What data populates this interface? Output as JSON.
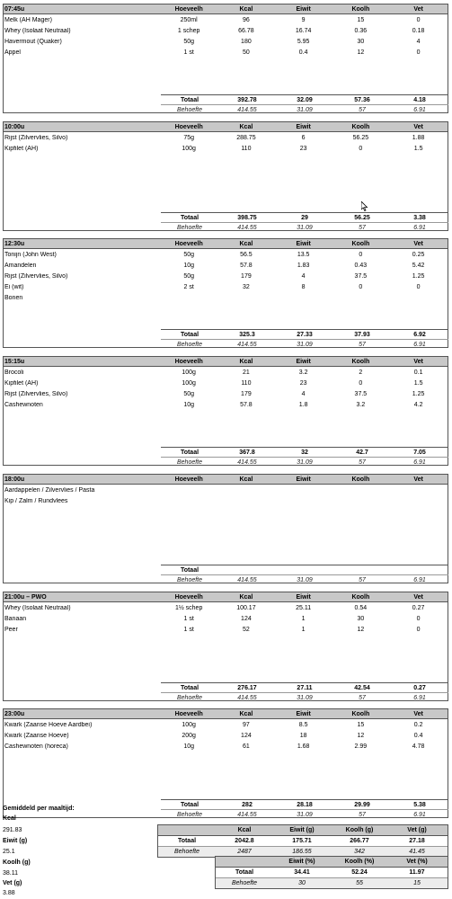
{
  "columns": {
    "qty": "Hoeveelh",
    "kcal": "Kcal",
    "eiwit": "Eiwit",
    "koolh": "Koolh",
    "vet": "Vet"
  },
  "total_label": "Totaal",
  "need_label": "Behoefte",
  "need": {
    "kcal": "414.55",
    "eiwit": "31.09",
    "koolh": "57",
    "vet": "6.91"
  },
  "meals": [
    {
      "time": "07:45u",
      "items": [
        {
          "name": "Melk (AH Mager)",
          "qty": "250ml",
          "kcal": "96",
          "eiwit": "9",
          "koolh": "15",
          "vet": "0"
        },
        {
          "name": "Whey (Isolaat Neutraal)",
          "qty": "1 schep",
          "kcal": "66.78",
          "eiwit": "16.74",
          "koolh": "0.36",
          "vet": "0.18"
        },
        {
          "name": "Havermout (Quaker)",
          "qty": "50g",
          "kcal": "180",
          "eiwit": "5.95",
          "koolh": "30",
          "vet": "4"
        },
        {
          "name": "Appel",
          "qty": "1 st",
          "kcal": "50",
          "eiwit": "0.4",
          "koolh": "12",
          "vet": "0"
        }
      ],
      "total": {
        "kcal": "392.78",
        "eiwit": "32.09",
        "koolh": "57.36",
        "vet": "4.18"
      }
    },
    {
      "time": "10:00u",
      "items": [
        {
          "name": "Rijst (Zilvervlies, Silvo)",
          "qty": "75g",
          "kcal": "288.75",
          "eiwit": "6",
          "koolh": "56.25",
          "vet": "1.88"
        },
        {
          "name": "Kipfilet (AH)",
          "qty": "100g",
          "kcal": "110",
          "eiwit": "23",
          "koolh": "0",
          "vet": "1.5"
        }
      ],
      "total": {
        "kcal": "398.75",
        "eiwit": "29",
        "koolh": "56.25",
        "vet": "3.38"
      }
    },
    {
      "time": "12:30u",
      "items": [
        {
          "name": "Tonijn (John West)",
          "qty": "50g",
          "kcal": "56.5",
          "eiwit": "13.5",
          "koolh": "0",
          "vet": "0.25"
        },
        {
          "name": "Amandelen",
          "qty": "10g",
          "kcal": "57.8",
          "eiwit": "1.83",
          "koolh": "0.43",
          "vet": "5.42"
        },
        {
          "name": "Rijst (Zilvervlies, Silvo)",
          "qty": "50g",
          "kcal": "179",
          "eiwit": "4",
          "koolh": "37.5",
          "vet": "1.25"
        },
        {
          "name": "Ei (wit)",
          "qty": "2 st",
          "kcal": "32",
          "eiwit": "8",
          "koolh": "0",
          "vet": "0"
        },
        {
          "name": "Bonen",
          "qty": "",
          "kcal": "",
          "eiwit": "",
          "koolh": "",
          "vet": ""
        }
      ],
      "total": {
        "kcal": "325.3",
        "eiwit": "27.33",
        "koolh": "37.93",
        "vet": "6.92"
      }
    },
    {
      "time": "15:15u",
      "items": [
        {
          "name": "Brocoli",
          "qty": "100g",
          "kcal": "21",
          "eiwit": "3.2",
          "koolh": "2",
          "vet": "0.1"
        },
        {
          "name": "Kipfilet (AH)",
          "qty": "100g",
          "kcal": "110",
          "eiwit": "23",
          "koolh": "0",
          "vet": "1.5"
        },
        {
          "name": "Rijst (Zilvervlies, Silvo)",
          "qty": "50g",
          "kcal": "179",
          "eiwit": "4",
          "koolh": "37.5",
          "vet": "1.25"
        },
        {
          "name": "Cashewnoten",
          "qty": "10g",
          "kcal": "57.8",
          "eiwit": "1.8",
          "koolh": "3.2",
          "vet": "4.2"
        }
      ],
      "total": {
        "kcal": "367.8",
        "eiwit": "32",
        "koolh": "42.7",
        "vet": "7.05"
      }
    },
    {
      "time": "18:00u",
      "items": [
        {
          "name": "Aardappelen / Zilvervlies / Pasta",
          "qty": "",
          "kcal": "",
          "eiwit": "",
          "koolh": "",
          "vet": ""
        },
        {
          "name": "Kip / Zalm / Rundvlees",
          "qty": "",
          "kcal": "",
          "eiwit": "",
          "koolh": "",
          "vet": ""
        }
      ],
      "total": {
        "kcal": "",
        "eiwit": "",
        "koolh": "",
        "vet": ""
      }
    },
    {
      "time": "21:00u – PWO",
      "items": [
        {
          "name": "Whey (Isolaat Neutraal)",
          "qty": "1½ schep",
          "kcal": "100.17",
          "eiwit": "25.11",
          "koolh": "0.54",
          "vet": "0.27"
        },
        {
          "name": "Banaan",
          "qty": "1 st",
          "kcal": "124",
          "eiwit": "1",
          "koolh": "30",
          "vet": "0"
        },
        {
          "name": "Peer",
          "qty": "1 st",
          "kcal": "52",
          "eiwit": "1",
          "koolh": "12",
          "vet": "0"
        }
      ],
      "total": {
        "kcal": "276.17",
        "eiwit": "27.11",
        "koolh": "42.54",
        "vet": "0.27"
      }
    },
    {
      "time": "23:00u",
      "items": [
        {
          "name": "Kwark (Zaanse Hoeve Aardbei)",
          "qty": "100g",
          "kcal": "97",
          "eiwit": "8.5",
          "koolh": "15",
          "vet": "0.2"
        },
        {
          "name": "Kwark (Zaanse Hoeve)",
          "qty": "200g",
          "kcal": "124",
          "eiwit": "18",
          "koolh": "12",
          "vet": "0.4"
        },
        {
          "name": "Cashewnoten (horeca)",
          "qty": "10g",
          "kcal": "61",
          "eiwit": "1.68",
          "koolh": "2.99",
          "vet": "4.78"
        }
      ],
      "total": {
        "kcal": "282",
        "eiwit": "28.18",
        "koolh": "29.99",
        "vet": "5.38"
      }
    }
  ],
  "summary": {
    "title": "Gemiddeld per maaltijd:",
    "left": [
      {
        "label": "Kcal",
        "value": "291.83"
      },
      {
        "label": "Eiwit (g)",
        "value": "25.1"
      },
      {
        "label": "Koolh (g)",
        "value": "38.11"
      },
      {
        "label": "Vet (g)",
        "value": "3.88"
      }
    ],
    "grams_table": {
      "headers": [
        "Kcal",
        "Eiwit (g)",
        "Koolh (g)",
        "Vet (g)"
      ],
      "total": [
        "2042.8",
        "175.71",
        "266.77",
        "27.18"
      ],
      "need": [
        "2487",
        "186.55",
        "342",
        "41.45"
      ]
    },
    "pct_table": {
      "headers": [
        "Eiwit (%)",
        "Koolh (%)",
        "Vet (%)"
      ],
      "total": [
        "34.41",
        "52.24",
        "11.97"
      ],
      "need": [
        "30",
        "55",
        "15"
      ]
    }
  }
}
